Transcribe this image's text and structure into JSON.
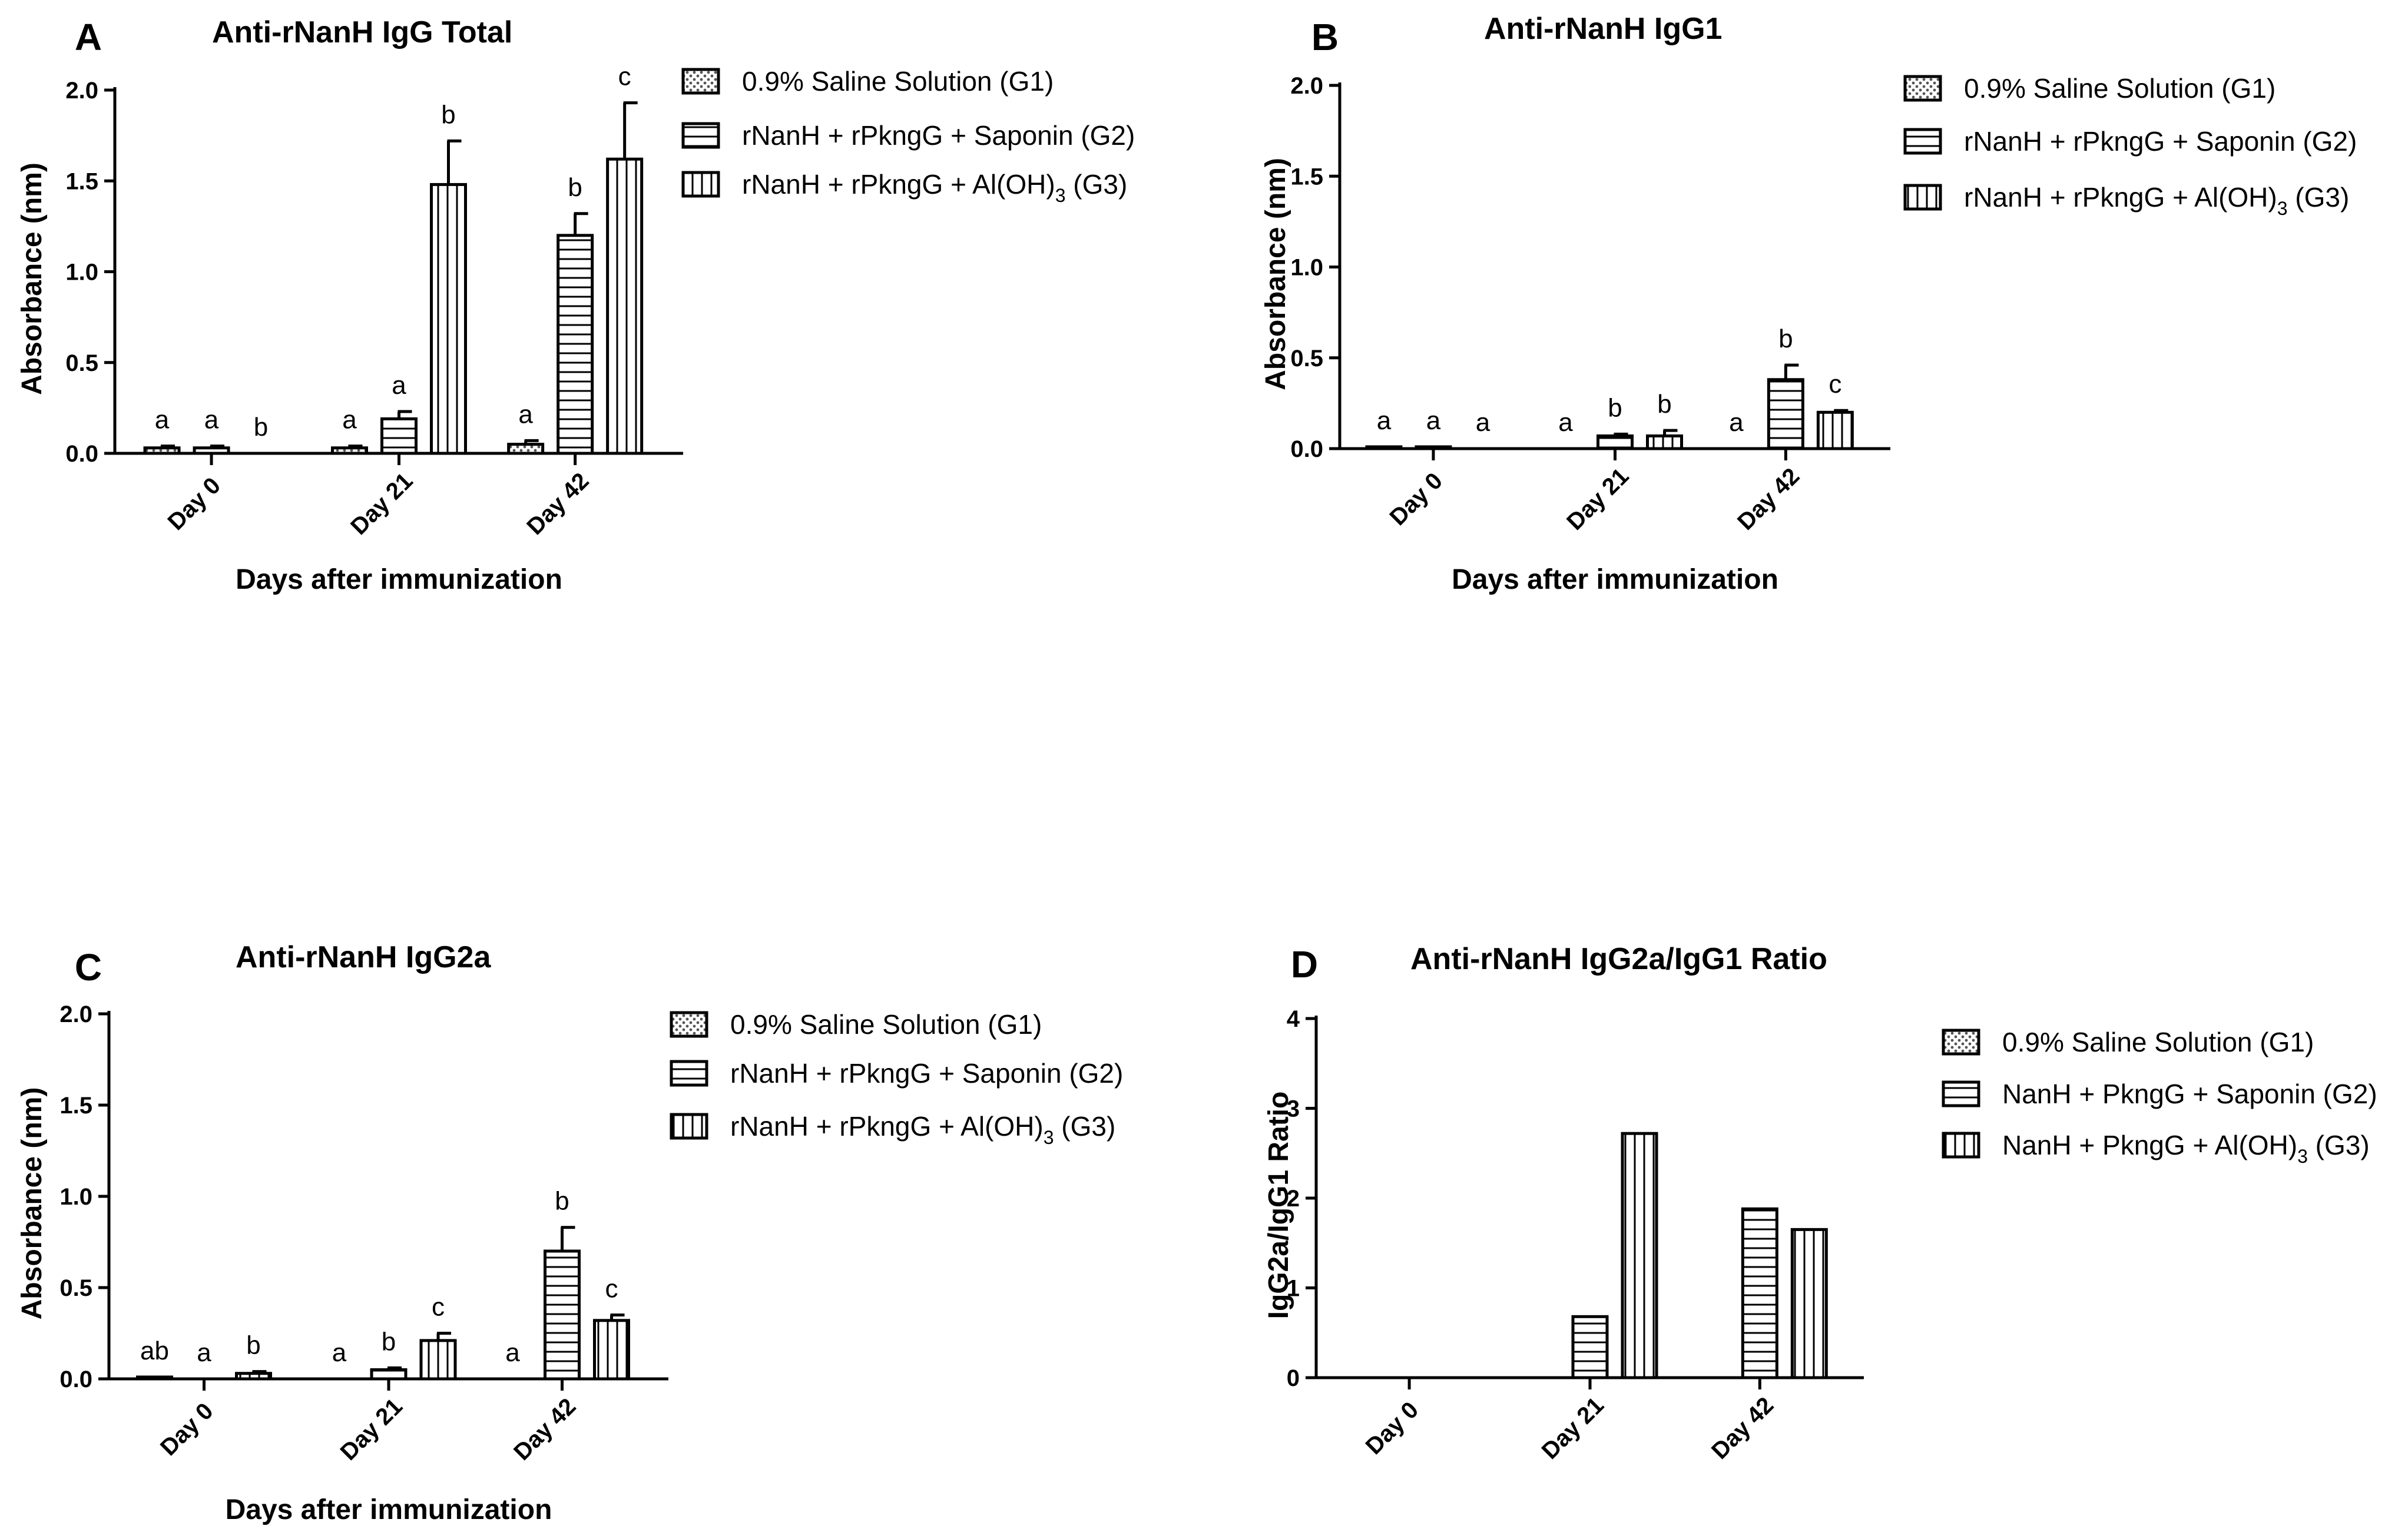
{
  "figure": {
    "xlabel_common": "Days after immunization",
    "categories": [
      "Day 0",
      "Day 21",
      "Day 42"
    ]
  },
  "chart_data": [
    {
      "id": "A",
      "type": "bar",
      "letter": "A",
      "title": "Anti-rNanH IgG Total",
      "xlabel": "Days after immunization",
      "ylabel": "Absorbance (nm)",
      "ylim": [
        0,
        2.0
      ],
      "yticks": [
        "0.0",
        "0.5",
        "1.0",
        "1.5",
        "2.0"
      ],
      "categories": [
        "Day 0",
        "Day 21",
        "Day 42"
      ],
      "series": [
        {
          "name": "0.9% Saline Solution (G1)",
          "pattern": "dots",
          "values": [
            0.03,
            0.03,
            0.05
          ],
          "errors": [
            0.01,
            0.01,
            0.02
          ],
          "labels": [
            "a",
            "a",
            "a"
          ]
        },
        {
          "name": "rNanH + rPkngG + Saponin (G2)",
          "pattern": "hlines",
          "values": [
            0.03,
            0.19,
            1.2
          ],
          "errors": [
            0.01,
            0.04,
            0.12
          ],
          "labels": [
            "a",
            "a",
            "b"
          ]
        },
        {
          "name": "rNanH + rPkngG + Al(OH)3 (G3)",
          "pattern": "vlines",
          "values": [
            0.0,
            1.48,
            1.62
          ],
          "errors": [
            0.0,
            0.24,
            0.31
          ],
          "labels": [
            "b",
            "b",
            "c"
          ]
        }
      ],
      "legend": [
        {
          "text": "0.9% Saline Solution (G1)",
          "sub": ""
        },
        {
          "text": "rNanH + rPkngG + Saponin (G2)",
          "sub": ""
        },
        {
          "text": "rNanH + rPkngG + Al(OH)",
          "sub": "3",
          "suffix": " (G3)"
        }
      ]
    },
    {
      "id": "B",
      "type": "bar",
      "letter": "B",
      "title": "Anti-rNanH IgG1",
      "xlabel": "Days after immunization",
      "ylabel": "Absorbance (nm)",
      "ylim": [
        0,
        2.0
      ],
      "yticks": [
        "0.0",
        "0.5",
        "1.0",
        "1.5",
        "2.0"
      ],
      "categories": [
        "Day 0",
        "Day 21",
        "Day 42"
      ],
      "series": [
        {
          "name": "0.9% Saline Solution (G1)",
          "pattern": "dots",
          "values": [
            0.01,
            0.0,
            0.0
          ],
          "errors": [
            0.0,
            0.0,
            0.0
          ],
          "labels": [
            "a",
            "a",
            "a"
          ]
        },
        {
          "name": "rNanH + rPkngG + Saponin (G2)",
          "pattern": "hlines",
          "values": [
            0.01,
            0.07,
            0.38
          ],
          "errors": [
            0.0,
            0.01,
            0.08
          ],
          "labels": [
            "a",
            "b",
            "b"
          ]
        },
        {
          "name": "rNanH + rPkngG + Al(OH)3 (G3)",
          "pattern": "vlines",
          "values": [
            0.0,
            0.07,
            0.2
          ],
          "errors": [
            0.0,
            0.03,
            0.01
          ],
          "labels": [
            "a",
            "b",
            "c"
          ]
        }
      ],
      "legend": [
        {
          "text": "0.9% Saline Solution (G1)",
          "sub": ""
        },
        {
          "text": "rNanH + rPkngG + Saponin (G2)",
          "sub": ""
        },
        {
          "text": "rNanH + rPkngG + Al(OH)",
          "sub": "3",
          "suffix": " (G3)"
        }
      ]
    },
    {
      "id": "C",
      "type": "bar",
      "letter": "C",
      "title": "Anti-rNanH IgG2a",
      "xlabel": "Days after immunization",
      "ylabel": "Absorbance (nm)",
      "ylim": [
        0,
        2.0
      ],
      "yticks": [
        "0.0",
        "0.5",
        "1.0",
        "1.5",
        "2.0"
      ],
      "categories": [
        "Day 0",
        "Day 21",
        "Day 42"
      ],
      "series": [
        {
          "name": "0.9% Saline Solution (G1)",
          "pattern": "dots",
          "values": [
            0.01,
            0.0,
            0.0
          ],
          "errors": [
            0.0,
            0.0,
            0.0
          ],
          "labels": [
            "ab",
            "a",
            "a"
          ]
        },
        {
          "name": "rNanH + rPkngG + Saponin (G2)",
          "pattern": "hlines",
          "values": [
            0.0,
            0.05,
            0.7
          ],
          "errors": [
            0.0,
            0.01,
            0.13
          ],
          "labels": [
            "a",
            "b",
            "b"
          ]
        },
        {
          "name": "rNanH + rPkngG + Al(OH)3 (G3)",
          "pattern": "vlines",
          "values": [
            0.03,
            0.21,
            0.32
          ],
          "errors": [
            0.01,
            0.04,
            0.03
          ],
          "labels": [
            "b",
            "c",
            "c"
          ]
        }
      ],
      "legend": [
        {
          "text": "0.9% Saline Solution (G1)",
          "sub": ""
        },
        {
          "text": "rNanH + rPkngG + Saponin (G2)",
          "sub": ""
        },
        {
          "text": "rNanH + rPkngG + Al(OH)",
          "sub": "3",
          "suffix": " (G3)"
        }
      ]
    },
    {
      "id": "D",
      "type": "bar",
      "letter": "D",
      "title": "Anti-rNanH IgG2a/IgG1 Ratio",
      "xlabel": "",
      "ylabel": "IgG2a/IgG1 Ratio",
      "ylim": [
        0,
        4
      ],
      "yticks": [
        "0",
        "1",
        "2",
        "3",
        "4"
      ],
      "categories": [
        "Day 0",
        "Day 21",
        "Day 42"
      ],
      "series": [
        {
          "name": "0.9% Saline Solution (G1)",
          "pattern": "dots",
          "values": [
            0,
            0,
            0
          ],
          "errors": [
            0,
            0,
            0
          ],
          "labels": [
            "",
            "",
            ""
          ]
        },
        {
          "name": "NanH + PkngG + Saponin (G2)",
          "pattern": "hlines",
          "values": [
            0,
            0.68,
            1.88
          ],
          "errors": [
            0,
            0,
            0
          ],
          "labels": [
            "",
            "",
            ""
          ]
        },
        {
          "name": "NanH + PkngG + Al(OH)3 (G3)",
          "pattern": "vlines",
          "values": [
            0,
            2.72,
            1.65
          ],
          "errors": [
            0,
            0,
            0
          ],
          "labels": [
            "",
            "",
            ""
          ]
        }
      ],
      "legend": [
        {
          "text": "0.9% Saline Solution (G1)",
          "sub": ""
        },
        {
          "text": "NanH + PkngG + Saponin (G2)",
          "sub": ""
        },
        {
          "text": "NanH + PkngG + Al(OH)",
          "sub": "3",
          "suffix": " (G3)"
        }
      ]
    }
  ]
}
